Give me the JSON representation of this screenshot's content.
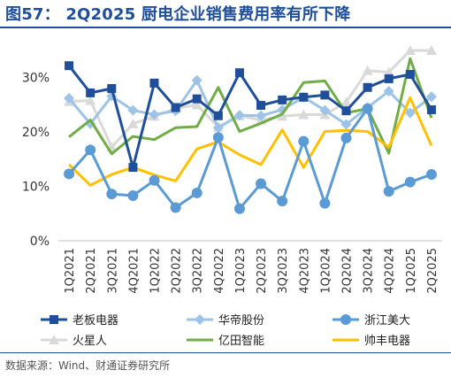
{
  "header": {
    "title": "图57：   2Q2025 厨电企业销售费用率有所下降"
  },
  "footer": {
    "source": "数据来源：Wind、财通证券研究所"
  },
  "chart_data": {
    "type": "line",
    "title": "2Q2025 厨电企业销售费用率有所下降",
    "xlabel": "",
    "ylabel": "",
    "ylim": [
      0,
      35
    ],
    "yticks": [
      0,
      10,
      20,
      30
    ],
    "ytick_labels": [
      "0%",
      "10%",
      "20%",
      "30%"
    ],
    "grid": false,
    "legend_position": "bottom",
    "categories": [
      "1Q2021",
      "2Q2021",
      "3Q2021",
      "4Q2021",
      "1Q2022",
      "2Q2022",
      "3Q2022",
      "4Q2022",
      "1Q2023",
      "2Q2023",
      "3Q2023",
      "4Q2023",
      "1Q2024",
      "2Q2024",
      "3Q2024",
      "4Q2024",
      "1Q2025",
      "2Q2025"
    ],
    "xtick_labels": [
      "1Q2021",
      "2Q2021",
      "3Q2021",
      "4Q2021",
      "1Q2022",
      "2Q2022",
      "3Q2022",
      "4Q2022",
      "1Q2023",
      "2Q2023",
      "3Q2023",
      "4Q2023",
      "1Q2024",
      "2Q2024",
      "3Q2024",
      "4Q2024",
      "1Q2025",
      "2Q2025"
    ],
    "series": [
      {
        "name": "老板电器",
        "color": "#1f4e9a",
        "marker": "square",
        "values": [
          32.2,
          27.2,
          28.0,
          13.5,
          29.0,
          24.5,
          26.1,
          23.0,
          30.9,
          24.9,
          25.9,
          26.4,
          26.8,
          23.9,
          28.2,
          29.8,
          30.6,
          24.1
        ]
      },
      {
        "name": "华帝股份",
        "color": "#9dc3e6",
        "marker": "diamond",
        "values": [
          26.2,
          21.5,
          26.6,
          24.0,
          23.2,
          23.9,
          29.5,
          20.8,
          23.1,
          23.0,
          24.1,
          26.4,
          24.0,
          21.4,
          24.5,
          27.5,
          23.5,
          26.5
        ]
      },
      {
        "name": "浙江美大",
        "color": "#5b9bd5",
        "marker": "circle",
        "values": [
          12.3,
          16.7,
          8.6,
          8.3,
          11.1,
          6.1,
          8.8,
          19.0,
          5.9,
          10.5,
          7.3,
          18.3,
          6.9,
          18.9,
          24.3,
          9.1,
          10.8,
          12.2
        ]
      },
      {
        "name": "火星人",
        "color": "#d9d9d9",
        "marker": "triangle",
        "values": [
          25.6,
          25.8,
          17.2,
          21.5,
          22.9,
          24.3,
          25.0,
          20.9,
          23.0,
          22.2,
          22.9,
          23.2,
          23.2,
          25.5,
          31.3,
          31.0,
          35.0,
          35.0
        ]
      },
      {
        "name": "亿田智能",
        "color": "#70ad47",
        "marker": "none",
        "values": [
          19.1,
          22.2,
          16.0,
          19.2,
          18.6,
          20.8,
          21.0,
          28.2,
          20.1,
          21.6,
          23.3,
          29.1,
          29.4,
          23.5,
          24.3,
          16.1,
          33.5,
          22.6
        ]
      },
      {
        "name": "帅丰电器",
        "color": "#ffc000",
        "marker": "none",
        "values": [
          14.0,
          10.2,
          12.2,
          13.5,
          12.1,
          11.0,
          16.9,
          18.2,
          15.8,
          14.0,
          20.4,
          13.5,
          20.1,
          20.3,
          20.1,
          17.2,
          26.3,
          17.5
        ]
      }
    ]
  }
}
